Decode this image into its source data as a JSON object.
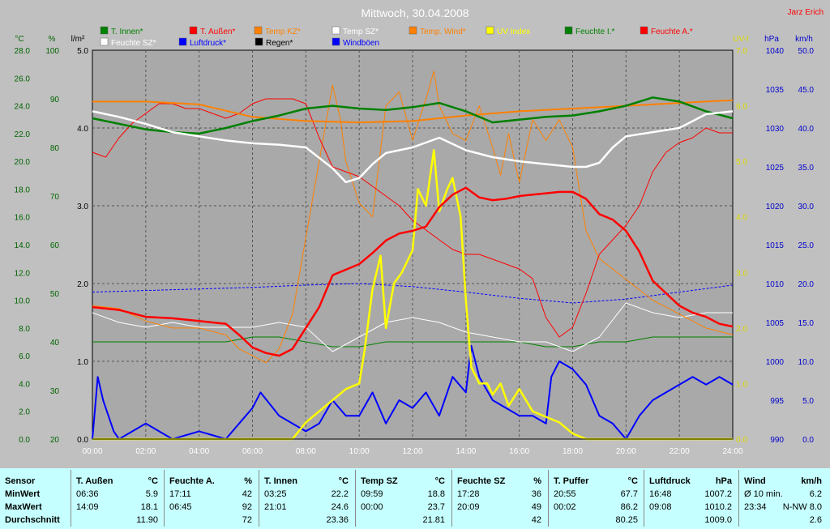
{
  "chart_data": {
    "type": "line",
    "title": "Mittwoch, 30.04.2008",
    "author": "Jarz Erich",
    "x_ticks": [
      "00:00",
      "02:00",
      "04:00",
      "06:00",
      "08:00",
      "10:00",
      "12:00",
      "14:00",
      "16:00",
      "18:00",
      "20:00",
      "22:00",
      "24:00"
    ],
    "axes": {
      "temp": {
        "unit": "°C",
        "range": [
          0,
          28
        ],
        "ticks": [
          "0.0",
          "2.0",
          "4.0",
          "6.0",
          "8.0",
          "10.0",
          "12.0",
          "14.0",
          "16.0",
          "18.0",
          "20.0",
          "22.0",
          "24.0",
          "26.0",
          "28.0"
        ],
        "color": "#006400"
      },
      "humidity": {
        "unit": "%",
        "range": [
          20,
          100
        ],
        "ticks": [
          "20",
          "30",
          "40",
          "50",
          "60",
          "70",
          "80",
          "90",
          "100"
        ],
        "color": "#006400"
      },
      "rain": {
        "unit": "l/m²",
        "range": [
          0,
          5
        ],
        "ticks": [
          "0.0",
          "1.0",
          "2.0",
          "3.0",
          "4.0",
          "5.0"
        ],
        "color": "#000000"
      },
      "uv": {
        "unit": "UV-I",
        "range": [
          0,
          7
        ],
        "ticks": [
          "0.0",
          "1.0",
          "2.0",
          "3.0",
          "4.0",
          "5.0",
          "6.0",
          "7.0"
        ],
        "color": "#dddd00"
      },
      "pressure": {
        "unit": "hPa",
        "range": [
          990,
          1040
        ],
        "ticks": [
          "990",
          "995",
          "1000",
          "1005",
          "1010",
          "1015",
          "1020",
          "1025",
          "1030",
          "1035",
          "1040"
        ],
        "color": "#0000cc"
      },
      "wind": {
        "unit": "km/h",
        "range": [
          0,
          50
        ],
        "ticks": [
          "0.0",
          "5.0",
          "10.0",
          "15.0",
          "20.0",
          "25.0",
          "30.0",
          "35.0",
          "40.0",
          "45.0",
          "50.0"
        ],
        "color": "#0000cc"
      }
    },
    "legend": [
      {
        "name": "T. Innen*",
        "color": "#008000"
      },
      {
        "name": "T. Außen*",
        "color": "#ff0000"
      },
      {
        "name": "Temp KZ*",
        "color": "#ff8000"
      },
      {
        "name": "Temp SZ*",
        "color": "#ffffff"
      },
      {
        "name": "Temp. Wind*",
        "color": "#ff8000"
      },
      {
        "name": "UV Index",
        "color": "#ffff00"
      },
      {
        "name": "Feuchte I.*",
        "color": "#008000"
      },
      {
        "name": "Feuchte A.*",
        "color": "#ff0000"
      },
      {
        "name": "Feuchte SZ*",
        "color": "#ffffff"
      },
      {
        "name": "Luftdruck*",
        "color": "#0000ff"
      },
      {
        "name": "Regen*",
        "color": "#000000"
      },
      {
        "name": "Windböen",
        "color": "#0000ff"
      }
    ],
    "series": [
      {
        "name": "T. Außen*",
        "axis": "temp",
        "color": "#ff0000",
        "width": 2.5,
        "x": [
          0,
          1,
          2,
          3,
          4,
          5,
          5.5,
          6,
          6.5,
          7,
          7.5,
          8,
          8.5,
          9,
          9.5,
          10,
          10.5,
          11,
          11.5,
          12,
          12.5,
          13,
          13.5,
          14,
          14.5,
          15,
          15.5,
          16,
          16.5,
          17,
          17.5,
          18,
          18.5,
          19,
          19.5,
          20,
          20.5,
          21,
          21.5,
          22,
          22.5,
          23,
          23.5,
          24
        ],
        "y": [
          9.5,
          9.3,
          8.8,
          8.7,
          8.5,
          8.3,
          7.5,
          6.6,
          6.2,
          6.0,
          6.5,
          8.0,
          9.5,
          11.8,
          12.2,
          12.6,
          13.4,
          14.3,
          14.8,
          15.0,
          15.3,
          16.7,
          17.6,
          18.1,
          17.4,
          17.2,
          17.3,
          17.5,
          17.6,
          17.7,
          17.8,
          17.8,
          17.3,
          16.2,
          15.8,
          15.0,
          13.5,
          11.4,
          10.5,
          9.6,
          9.1,
          8.8,
          8.3,
          8.1
        ]
      },
      {
        "name": "Feuchte A.*",
        "axis": "humidity",
        "color": "#ff0000",
        "width": 1,
        "x": [
          0,
          0.5,
          1,
          1.5,
          2,
          2.5,
          3,
          3.5,
          4,
          4.5,
          5,
          5.5,
          6,
          6.5,
          7,
          7.5,
          8,
          8.5,
          9,
          9.5,
          10,
          10.5,
          11,
          11.5,
          12,
          12.5,
          13,
          13.5,
          14,
          14.5,
          15,
          15.5,
          16,
          16.5,
          17,
          17.5,
          18,
          18.5,
          19,
          19.5,
          20,
          20.5,
          21,
          21.5,
          22,
          22.5,
          23,
          23.5,
          24
        ],
        "y": [
          79,
          78,
          82,
          85,
          87,
          89,
          89,
          88,
          88,
          87,
          86,
          87,
          89,
          90,
          90,
          90,
          89,
          82,
          76,
          75,
          74,
          72,
          70,
          68,
          65,
          63,
          61,
          59,
          58,
          58,
          57,
          56,
          55,
          53,
          45,
          41,
          43,
          50,
          58,
          61,
          64,
          68,
          75,
          79,
          81,
          82,
          84,
          83,
          83
        ]
      },
      {
        "name": "T. Innen*",
        "axis": "temp",
        "color": "#008000",
        "width": 2.5,
        "x": [
          0,
          1,
          2,
          3,
          4,
          5,
          6,
          7,
          8,
          9,
          10,
          11,
          12,
          13,
          14,
          15,
          16,
          17,
          18,
          19,
          20,
          21,
          22,
          23,
          24
        ],
        "y": [
          23.1,
          22.7,
          22.3,
          22.1,
          22.0,
          22.4,
          22.9,
          23.3,
          23.8,
          24.0,
          23.8,
          23.7,
          23.9,
          24.2,
          23.6,
          22.8,
          23.0,
          23.2,
          23.3,
          23.6,
          24.0,
          24.6,
          24.3,
          23.6,
          23.1
        ]
      },
      {
        "name": "Temp KZ*",
        "axis": "temp",
        "color": "#ff8000",
        "width": 2,
        "x": [
          0,
          2,
          4,
          6,
          8,
          10,
          12,
          14,
          16,
          18,
          20,
          21,
          22,
          23,
          24
        ],
        "y": [
          24.3,
          24.3,
          24.1,
          23.2,
          22.9,
          22.8,
          22.9,
          23.3,
          23.6,
          23.8,
          24.0,
          24.1,
          24.2,
          24.3,
          24.4
        ]
      },
      {
        "name": "Temp SZ*",
        "axis": "temp",
        "color": "#ffffff",
        "width": 2.5,
        "x": [
          0,
          1,
          2,
          3,
          4,
          5,
          6,
          7,
          8,
          9,
          9.5,
          10,
          10.5,
          11,
          12,
          13,
          14,
          15,
          16,
          17,
          18,
          18.5,
          19,
          19.5,
          20,
          21,
          22,
          23,
          24
        ],
        "y": [
          23.6,
          23.2,
          22.7,
          22.1,
          21.8,
          21.5,
          21.3,
          21.2,
          21.0,
          19.5,
          18.5,
          18.8,
          19.8,
          20.6,
          21.0,
          21.7,
          20.8,
          20.3,
          20.0,
          19.8,
          19.6,
          19.6,
          19.9,
          21.0,
          21.8,
          22.1,
          22.4,
          23.4,
          23.6
        ]
      },
      {
        "name": "Feuchte SZ*",
        "axis": "humidity",
        "color": "#ffffff",
        "width": 1,
        "x": [
          0,
          1,
          2,
          3,
          4,
          5,
          6,
          7,
          8,
          9,
          10,
          11,
          12,
          13,
          14,
          15,
          16,
          17,
          18,
          19,
          20,
          21,
          22,
          23,
          24
        ],
        "y": [
          46,
          44,
          43,
          44,
          43,
          43,
          43,
          44,
          43,
          38,
          41,
          44,
          45,
          44,
          42,
          41,
          40,
          40,
          38,
          41,
          48,
          46,
          45,
          46,
          46
        ]
      },
      {
        "name": "Feuchte I.*",
        "axis": "humidity",
        "color": "#008000",
        "width": 1,
        "x": [
          0,
          3,
          4,
          5,
          6,
          7,
          8,
          9,
          10,
          11,
          12,
          13,
          14,
          16,
          17,
          18,
          19,
          20,
          21,
          22,
          24
        ],
        "y": [
          40,
          40,
          40,
          40,
          41,
          41,
          40,
          39,
          39,
          40,
          40,
          40,
          40,
          40,
          39,
          39,
          40,
          40,
          41,
          41,
          41
        ]
      },
      {
        "name": "Temp. Wind*",
        "axis": "temp",
        "color": "#ff8000",
        "width": 1,
        "x": [
          0,
          1,
          2,
          3,
          4,
          5,
          5.5,
          6,
          6.5,
          7,
          7.5,
          8,
          8.5,
          9,
          9.3,
          9.5,
          10,
          10.5,
          11,
          11.5,
          12,
          12.5,
          12.8,
          13,
          13.5,
          14,
          14.5,
          15,
          15.3,
          15.6,
          16,
          16.5,
          17,
          17.5,
          18,
          18.5,
          19,
          20,
          21,
          22,
          23,
          24
        ],
        "y": [
          9.6,
          9.4,
          8.5,
          8.0,
          8.0,
          7.5,
          6.5,
          6.0,
          5.5,
          6.5,
          9.0,
          14.5,
          20.0,
          25.5,
          23.0,
          20.0,
          17.0,
          16.0,
          24.0,
          25.0,
          21.5,
          24.5,
          26.5,
          24.0,
          22.0,
          21.5,
          24.0,
          21.0,
          19.0,
          22.0,
          18.5,
          23.0,
          21.5,
          23.0,
          21.0,
          15.0,
          13.0,
          11.5,
          10.0,
          9.0,
          8.0,
          7.5
        ]
      },
      {
        "name": "UV Index",
        "axis": "uv",
        "color": "#ffff00",
        "width": 2.5,
        "x": [
          0,
          7.5,
          8,
          8.5,
          9,
          9.5,
          10,
          10.2,
          10.5,
          10.8,
          11,
          11.3,
          11.6,
          12,
          12.2,
          12.5,
          12.8,
          13,
          13.3,
          13.5,
          13.8,
          14,
          14.2,
          14.5,
          14.8,
          15,
          15.3,
          15.6,
          16,
          16.5,
          17,
          17.5,
          18,
          18.5,
          24
        ],
        "y": [
          0,
          0,
          0.3,
          0.5,
          0.7,
          0.9,
          1.0,
          1.6,
          2.7,
          3.3,
          2.0,
          2.8,
          3.0,
          3.4,
          4.5,
          4.2,
          5.2,
          4.1,
          4.5,
          4.7,
          4.0,
          2.5,
          1.3,
          1.0,
          1.0,
          0.8,
          1.0,
          0.6,
          0.9,
          0.5,
          0.4,
          0.3,
          0.1,
          0,
          0
        ]
      },
      {
        "name": "Luftdruck*",
        "axis": "pressure",
        "color": "#0000ff",
        "width": 1,
        "dashed": true,
        "x": [
          0,
          2,
          4,
          6,
          8,
          10,
          12,
          14,
          16,
          18,
          20,
          22,
          24
        ],
        "y": [
          1008.9,
          1009.1,
          1009.3,
          1009.5,
          1009.8,
          1010.0,
          1009.6,
          1008.9,
          1008.1,
          1007.5,
          1008.0,
          1008.9,
          1009.8
        ]
      },
      {
        "name": "Windböen",
        "axis": "wind",
        "color": "#0000ff",
        "width": 2,
        "x": [
          0,
          0.2,
          0.4,
          0.8,
          1,
          2,
          3,
          4,
          5,
          5.5,
          6,
          6.3,
          7,
          8,
          8.5,
          9,
          9.5,
          10,
          10.5,
          11,
          11.5,
          12,
          12.5,
          13,
          13.5,
          14,
          14.2,
          14.5,
          15,
          15.5,
          16,
          16.5,
          17,
          17.2,
          17.5,
          18,
          18.5,
          19,
          19.5,
          20,
          20.5,
          21,
          21.5,
          22,
          22.5,
          23,
          23.5,
          24
        ],
        "y": [
          0,
          8,
          5,
          1,
          0,
          2,
          0,
          1,
          0,
          2,
          4,
          6,
          3,
          1,
          2,
          5,
          3,
          3,
          6,
          2,
          5,
          4,
          6,
          3,
          8,
          6,
          12,
          8,
          5,
          4,
          3,
          3,
          2,
          8,
          10,
          9,
          7,
          3,
          2,
          0,
          3,
          5,
          6,
          7,
          8,
          7,
          8,
          7
        ]
      },
      {
        "name": "Regen*",
        "axis": "rain",
        "color": "#000000",
        "width": 1,
        "x": [
          0,
          24
        ],
        "y": [
          0,
          0
        ]
      }
    ]
  },
  "stats": {
    "labels": {
      "sensor": "Sensor",
      "min": "MinWert",
      "max": "MaxWert",
      "avg": "Durchschnitt"
    },
    "columns": [
      {
        "name": "T. Außen",
        "unit": "°C",
        "min_time": "06:36",
        "min_val": "5.9",
        "max_time": "14:09",
        "max_val": "18.1",
        "avg": "11.90"
      },
      {
        "name": "Feuchte A.",
        "unit": "%",
        "min_time": "17:11",
        "min_val": "42",
        "max_time": "06:45",
        "max_val": "92",
        "avg": "72"
      },
      {
        "name": "T. Innen",
        "unit": "°C",
        "min_time": "03:25",
        "min_val": "22.2",
        "max_time": "21:01",
        "max_val": "24.6",
        "avg": "23.36"
      },
      {
        "name": "Temp SZ",
        "unit": "°C",
        "min_time": "09:59",
        "min_val": "18.8",
        "max_time": "00:00",
        "max_val": "23.7",
        "avg": "21.81"
      },
      {
        "name": "Feuchte SZ",
        "unit": "%",
        "min_time": "17:28",
        "min_val": "36",
        "max_time": "20:09",
        "max_val": "49",
        "avg": "42"
      },
      {
        "name": "T. Puffer",
        "unit": "°C",
        "min_time": "20:55",
        "min_val": "67.7",
        "max_time": "00:02",
        "max_val": "86.2",
        "avg": "80.25"
      },
      {
        "name": "Luftdruck",
        "unit": "hPa",
        "min_time": "16:48",
        "min_val": "1007.2",
        "max_time": "09:08",
        "max_val": "1010.2",
        "avg": "1009.0"
      },
      {
        "name": "Wind",
        "unit": "km/h",
        "min_time": "Ø 10 min.",
        "min_val": "6.2",
        "max_time": "23:34",
        "max_val": "N-NW 8.0",
        "avg": "2.6"
      }
    ]
  }
}
